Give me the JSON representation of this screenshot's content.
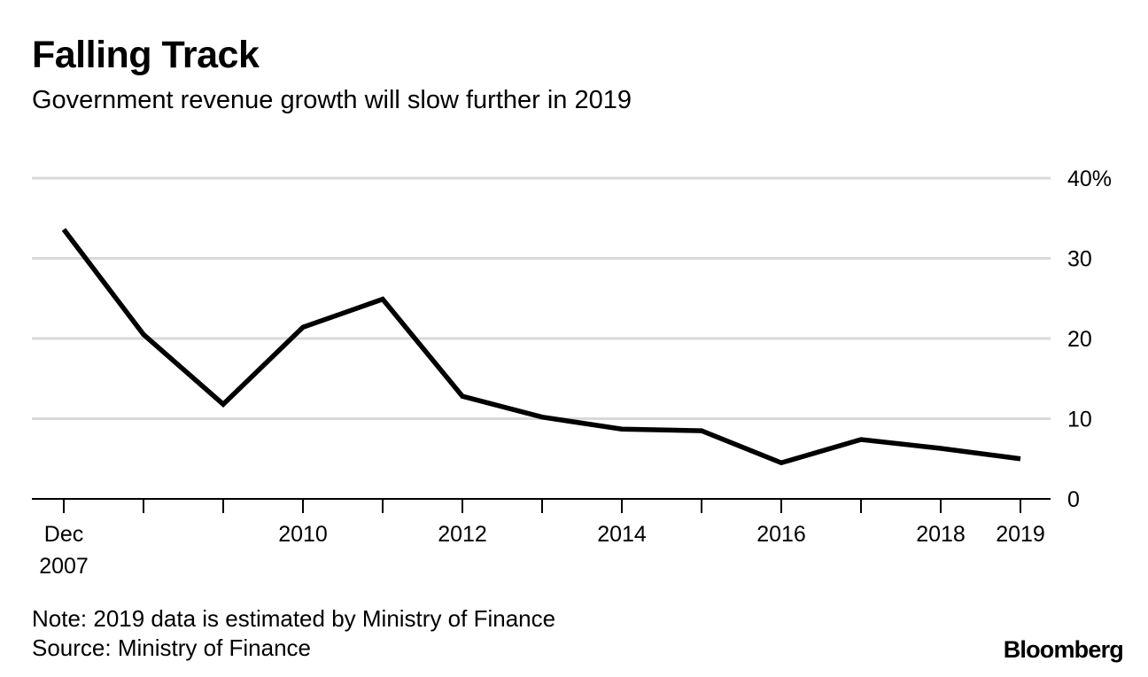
{
  "header": {
    "title": "Falling Track",
    "subtitle": "Government revenue growth will slow further in 2019"
  },
  "footer": {
    "note": "Note: 2019 data is estimated by Ministry of Finance",
    "source": "Source: Ministry of Finance",
    "brand": "Bloomberg"
  },
  "colors": {
    "line": "#000000",
    "grid": "#d9d9d9",
    "axis": "#000000"
  },
  "chart_data": {
    "type": "line",
    "title": "Falling Track",
    "subtitle": "Government revenue growth will slow further in 2019",
    "xlabel": "",
    "ylabel": "",
    "x": [
      2007,
      2008,
      2009,
      2010,
      2011,
      2012,
      2013,
      2014,
      2015,
      2016,
      2017,
      2018,
      2019
    ],
    "xlim": [
      2007,
      2019
    ],
    "ylim": [
      0,
      40
    ],
    "grid": true,
    "y_axis_side": "right",
    "x_ticks": [
      {
        "value": 2007,
        "label": [
          "Dec",
          "2007"
        ]
      },
      {
        "value": 2008,
        "label": []
      },
      {
        "value": 2009,
        "label": []
      },
      {
        "value": 2010,
        "label": [
          "2010"
        ]
      },
      {
        "value": 2011,
        "label": []
      },
      {
        "value": 2012,
        "label": [
          "2012"
        ]
      },
      {
        "value": 2013,
        "label": []
      },
      {
        "value": 2014,
        "label": [
          "2014"
        ]
      },
      {
        "value": 2015,
        "label": []
      },
      {
        "value": 2016,
        "label": [
          "2016"
        ]
      },
      {
        "value": 2017,
        "label": []
      },
      {
        "value": 2018,
        "label": [
          "2018"
        ]
      },
      {
        "value": 2019,
        "label": [
          "2019"
        ]
      }
    ],
    "y_ticks": [
      {
        "value": 0,
        "label": "0"
      },
      {
        "value": 10,
        "label": "10"
      },
      {
        "value": 20,
        "label": "20"
      },
      {
        "value": 30,
        "label": "30"
      },
      {
        "value": 40,
        "label": "40%"
      }
    ],
    "series": [
      {
        "name": "Government revenue growth",
        "values": [
          33.6,
          20.5,
          11.8,
          21.4,
          24.9,
          12.8,
          10.2,
          8.7,
          8.5,
          4.5,
          7.4,
          6.3,
          5.0
        ]
      }
    ]
  }
}
